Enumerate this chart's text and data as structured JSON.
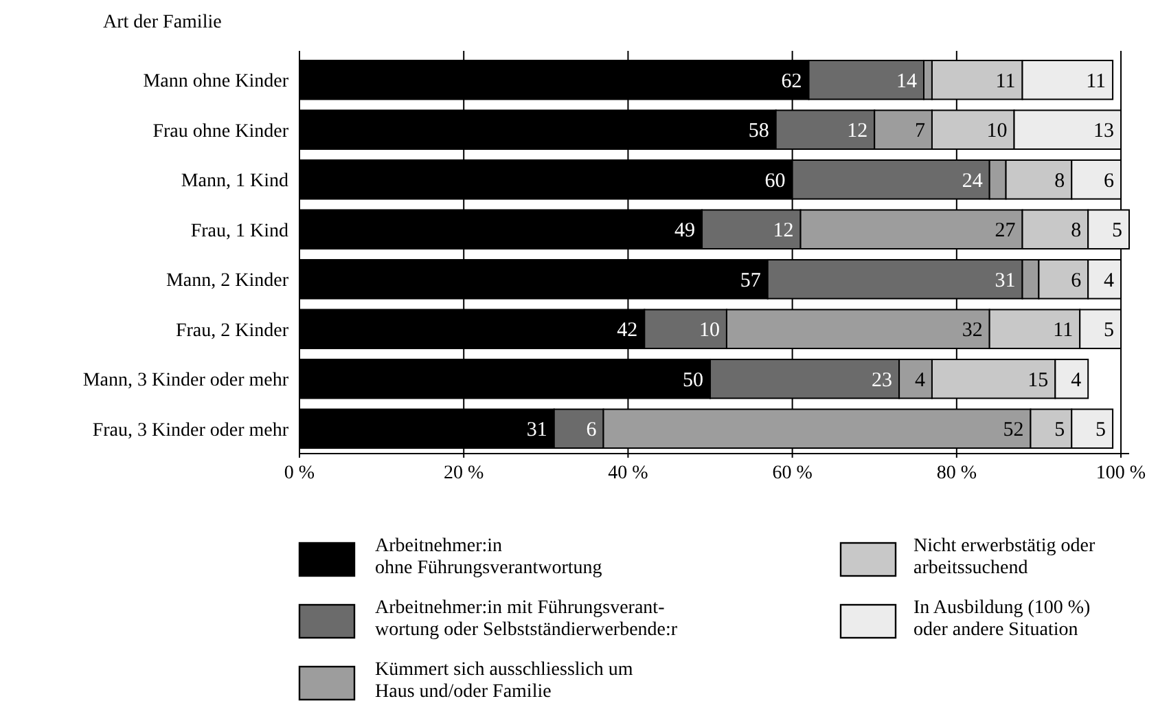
{
  "chart_data": {
    "type": "bar",
    "orientation": "horizontal",
    "stacked": true,
    "ylabel": "Art der Familie",
    "categories": [
      "Mann ohne Kinder",
      "Frau ohne Kinder",
      "Mann, 1 Kind",
      "Frau, 1 Kind",
      "Mann, 2 Kinder",
      "Frau, 2 Kinder",
      "Mann, 3 Kinder oder mehr",
      "Frau, 3 Kinder oder mehr"
    ],
    "series": [
      {
        "name": "Arbeitnehmer:in\nohne Führungsverantwortung",
        "color": "#000000",
        "values": [
          62,
          58,
          60,
          49,
          57,
          42,
          50,
          31
        ],
        "value_labels": [
          "62",
          "58",
          "60",
          "49",
          "57",
          "42",
          "50",
          "31"
        ]
      },
      {
        "name": "Arbeitnehmer:in mit Führungsverant-\nwortung oder Selbstständierwerbende:r",
        "color": "#6b6b6b",
        "values": [
          14,
          12,
          24,
          12,
          31,
          10,
          23,
          6
        ],
        "value_labels": [
          "14",
          "12",
          "24",
          "12",
          "31",
          "10",
          "23",
          "6"
        ]
      },
      {
        "name": "Kümmert sich ausschliesslich um\nHaus und/oder Familie",
        "color": "#9d9d9d",
        "values": [
          1,
          7,
          2,
          27,
          2,
          32,
          4,
          52
        ],
        "value_labels": [
          null,
          "7",
          null,
          "27",
          null,
          "32",
          "4",
          "52"
        ]
      },
      {
        "name": "Nicht erwerbstätig oder\narbeitssuchend",
        "color": "#c8c8c8",
        "values": [
          11,
          10,
          8,
          8,
          6,
          11,
          15,
          5
        ],
        "value_labels": [
          "11",
          "10",
          "8",
          "8",
          "6",
          "11",
          "15",
          "5"
        ]
      },
      {
        "name": "In Ausbildung (100 %)\noder andere Situation",
        "color": "#ececec",
        "values": [
          11,
          13,
          6,
          5,
          4,
          5,
          4,
          5
        ],
        "value_labels": [
          "11",
          "13",
          "6",
          "5",
          "4",
          "5",
          "4",
          "5"
        ]
      }
    ],
    "xlim": [
      0,
      101
    ],
    "xticks": [
      {
        "value": 0,
        "label": "0 %"
      },
      {
        "value": 20,
        "label": "20 %"
      },
      {
        "value": 40,
        "label": "40 %"
      },
      {
        "value": 60,
        "label": "60 %"
      },
      {
        "value": 80,
        "label": "80 %"
      },
      {
        "value": 100,
        "label": "100 %"
      }
    ],
    "grid": "x",
    "legend": "bottom"
  }
}
